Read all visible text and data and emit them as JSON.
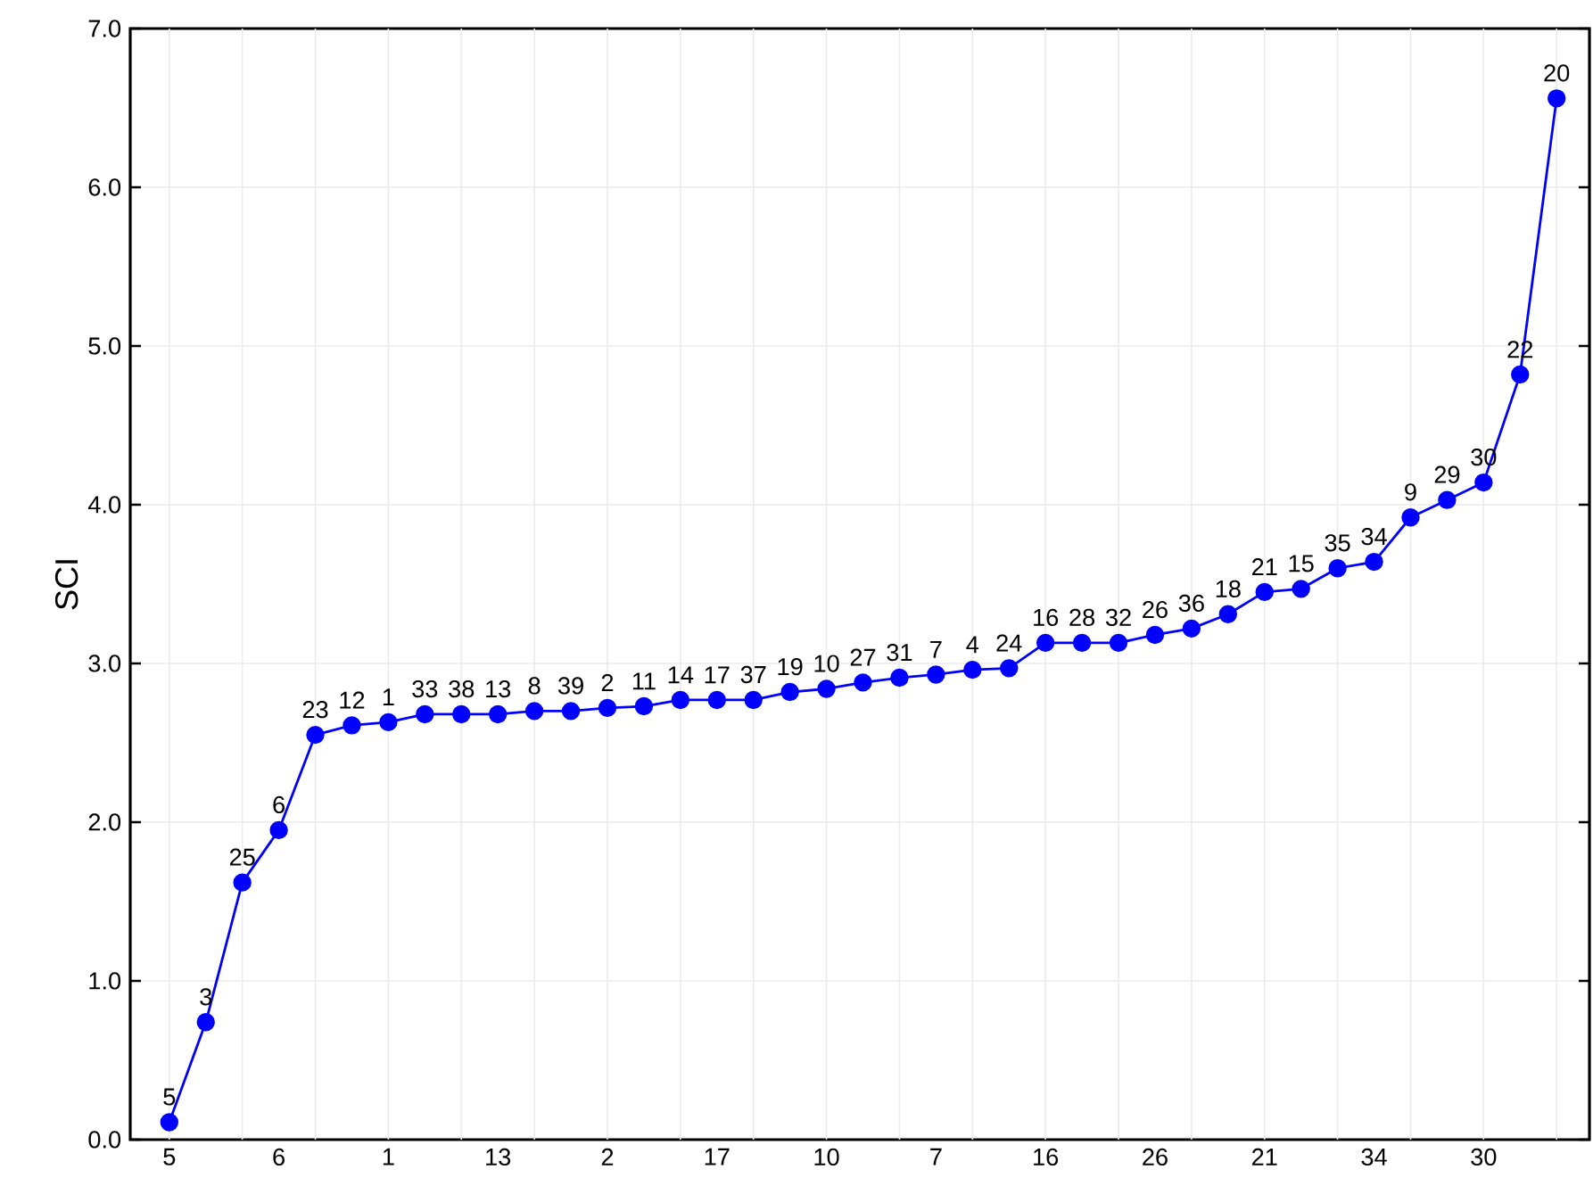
{
  "chart_data": {
    "type": "line",
    "ylabel": "SCI",
    "categories": [
      "5",
      null,
      null,
      "6",
      null,
      null,
      "1",
      null,
      null,
      "13",
      null,
      null,
      "2",
      null,
      null,
      "17",
      null,
      null,
      "10",
      null,
      null,
      "7",
      null,
      null,
      "16",
      null,
      null,
      "26",
      null,
      null,
      "21",
      null,
      null,
      "34",
      null,
      null,
      "30",
      null,
      null
    ],
    "values": [
      0.11,
      0.74,
      1.62,
      1.95,
      2.55,
      2.61,
      2.63,
      2.68,
      2.68,
      2.68,
      2.7,
      2.7,
      2.72,
      2.73,
      2.77,
      2.77,
      2.77,
      2.82,
      2.84,
      2.88,
      2.91,
      2.93,
      2.96,
      2.97,
      3.13,
      3.13,
      3.13,
      3.18,
      3.22,
      3.31,
      3.45,
      3.47,
      3.6,
      3.64,
      3.92,
      4.03,
      4.14,
      4.82,
      6.56
    ],
    "color": "#0000ff",
    "marker": "circle",
    "line_style": "solid",
    "grid": true,
    "ylim": [
      0,
      7
    ],
    "yticks": [
      {
        "value": 0,
        "label": "0.0"
      },
      {
        "value": 1,
        "label": "1.0"
      },
      {
        "value": 2,
        "label": "2.0"
      },
      {
        "value": 3,
        "label": "3.0"
      },
      {
        "value": 4,
        "label": "4.0"
      },
      {
        "value": 5,
        "label": "5.0"
      },
      {
        "value": 6,
        "label": "6.0"
      },
      {
        "value": 7,
        "label": "7.0"
      }
    ],
    "annotations": [
      {
        "text": "5",
        "y": 0.11
      },
      {
        "text": "3",
        "y": 0.74
      },
      {
        "text": "25",
        "y": 1.62
      },
      {
        "text": "6",
        "y": 1.95
      },
      {
        "text": "23",
        "y": 2.55
      },
      {
        "text": "12",
        "y": 2.61
      },
      {
        "text": "1",
        "y": 2.63
      },
      {
        "text": "33",
        "y": 2.68
      },
      {
        "text": "38",
        "y": 2.68
      },
      {
        "text": "13",
        "y": 2.68
      },
      {
        "text": "8",
        "y": 2.7
      },
      {
        "text": "39",
        "y": 2.7
      },
      {
        "text": "2",
        "y": 2.72
      },
      {
        "text": "11",
        "y": 2.73
      },
      {
        "text": "14",
        "y": 2.77
      },
      {
        "text": "17",
        "y": 2.77
      },
      {
        "text": "37",
        "y": 2.77
      },
      {
        "text": "19",
        "y": 2.82
      },
      {
        "text": "10",
        "y": 2.84
      },
      {
        "text": "27",
        "y": 2.88
      },
      {
        "text": "31",
        "y": 2.91
      },
      {
        "text": "7",
        "y": 2.93
      },
      {
        "text": "4",
        "y": 2.96
      },
      {
        "text": "24",
        "y": 2.97
      },
      {
        "text": "16",
        "y": 3.13
      },
      {
        "text": "28",
        "y": 3.13
      },
      {
        "text": "32",
        "y": 3.13
      },
      {
        "text": "26",
        "y": 3.18
      },
      {
        "text": "36",
        "y": 3.22
      },
      {
        "text": "18",
        "y": 3.31
      },
      {
        "text": "21",
        "y": 3.45
      },
      {
        "text": "15",
        "y": 3.47
      },
      {
        "text": "35",
        "y": 3.6
      },
      {
        "text": "34",
        "y": 3.64
      },
      {
        "text": "9",
        "y": 3.92
      },
      {
        "text": "29",
        "y": 4.03
      },
      {
        "text": "30",
        "y": 4.14
      },
      {
        "text": "22",
        "y": 4.82
      },
      {
        "text": "20",
        "y": 6.56
      }
    ]
  }
}
